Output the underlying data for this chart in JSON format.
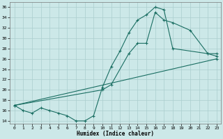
{
  "xlabel": "Humidex (Indice chaleur)",
  "background_color": "#cce8e8",
  "grid_color": "#aacece",
  "line_color": "#1a6e62",
  "xlim": [
    -0.5,
    23.5
  ],
  "ylim": [
    13.5,
    37
  ],
  "yticks": [
    14,
    16,
    18,
    20,
    22,
    24,
    26,
    28,
    30,
    32,
    34,
    36
  ],
  "xticks": [
    0,
    1,
    2,
    3,
    4,
    5,
    6,
    7,
    8,
    9,
    10,
    11,
    12,
    13,
    14,
    15,
    16,
    17,
    18,
    19,
    20,
    21,
    22,
    23
  ],
  "line1_x": [
    0,
    1,
    2,
    3,
    4,
    5,
    6,
    7,
    8,
    9,
    10,
    11,
    12,
    13,
    14,
    15,
    16,
    17,
    18,
    22,
    23
  ],
  "line1_y": [
    17,
    16,
    15.5,
    16.5,
    16,
    15.5,
    15,
    14,
    14,
    15,
    20.5,
    24.5,
    27.5,
    31,
    33.5,
    34.5,
    36,
    35.5,
    28,
    27,
    27
  ],
  "line2_x": [
    0,
    10,
    11,
    13,
    14,
    15,
    16,
    17,
    18,
    20,
    22,
    23
  ],
  "line2_y": [
    17,
    20,
    21,
    27,
    29,
    29,
    35,
    33.5,
    33,
    31.5,
    27,
    26.5
  ],
  "line3_x": [
    0,
    23
  ],
  "line3_y": [
    17,
    26
  ],
  "marker": "+"
}
